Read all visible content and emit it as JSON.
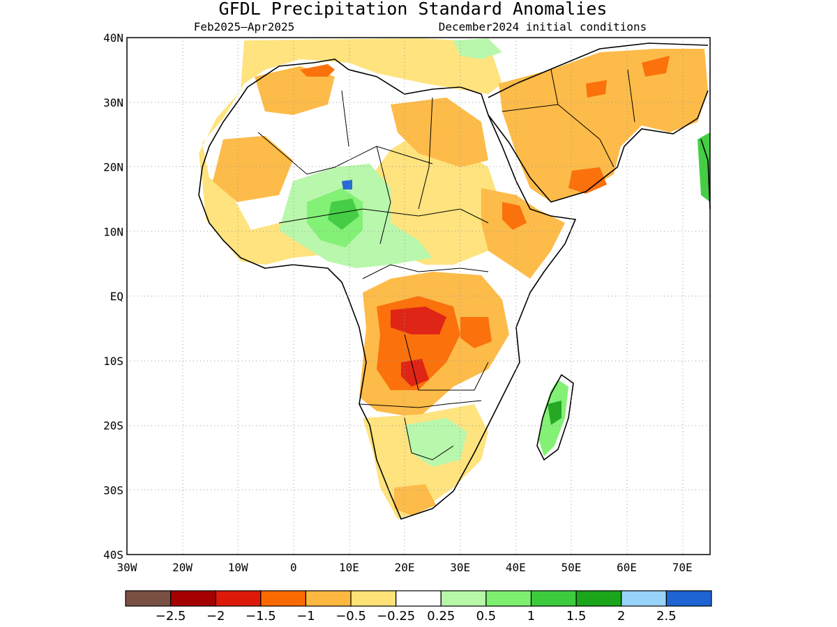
{
  "map": {
    "title": "GFDL Precipitation Standard Anomalies",
    "subtitle_left": "Feb2025–Apr2025",
    "subtitle_right": "December2024 initial conditions",
    "lat_labels": [
      "40N",
      "30N",
      "20N",
      "10N",
      "EQ",
      "10S",
      "20S",
      "30S",
      "40S"
    ],
    "lon_labels": [
      "30W",
      "20W",
      "10W",
      "0",
      "10E",
      "20E",
      "30E",
      "40E",
      "50E",
      "60E",
      "70E"
    ],
    "grid": "on",
    "bounds": {
      "lon": [
        -30,
        75
      ],
      "lat": [
        -40,
        40
      ]
    }
  },
  "colorbar": {
    "colors": [
      "#7b5044",
      "#a40000",
      "#dd1a0a",
      "#fb6a00",
      "#fdb840",
      "#fee278",
      "#ffffff",
      "#b6f7a8",
      "#7df06f",
      "#3ccb3c",
      "#1aa51a",
      "#96d2fa",
      "#1e64d2"
    ],
    "labels": [
      "−2.5",
      "−2",
      "−1.5",
      "−1",
      "−0.5",
      "−0.25",
      "0.25",
      "0.5",
      "1",
      "1.5",
      "2",
      "2.5"
    ],
    "values": [
      -2.5,
      -2,
      -1.5,
      -1,
      -0.5,
      -0.25,
      0.25,
      0.5,
      1,
      1.5,
      2,
      2.5
    ]
  }
}
